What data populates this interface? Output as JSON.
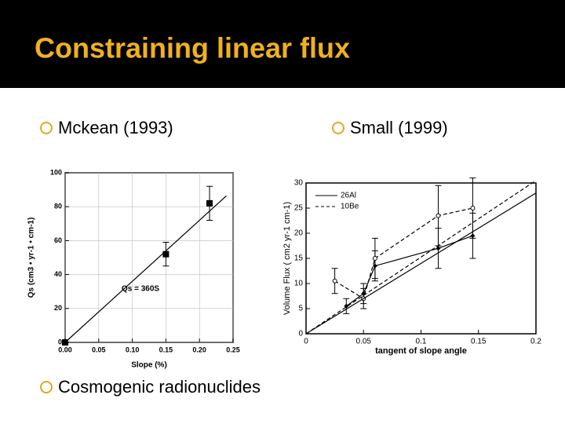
{
  "title": "Constraining linear flux",
  "bullets": [
    "Mckean (1993)",
    "Small (1999)",
    "Cosmogenic radionuclides"
  ],
  "chart_data": [
    {
      "type": "scatter",
      "xlabel": "Slope (%)",
      "ylabel": "Qs (cm3 • yr-1 • cm-1)",
      "annotation": "Qs = 360S",
      "xlim": [
        0,
        0.25
      ],
      "xticks": [
        {
          "value": 0,
          "label": "0.00"
        },
        {
          "value": 0.05,
          "label": "0.05"
        },
        {
          "value": 0.1,
          "label": "0.10"
        },
        {
          "value": 0.15,
          "label": "0.15"
        },
        {
          "value": 0.2,
          "label": "0.20"
        },
        {
          "value": 0.25,
          "label": "0.25"
        }
      ],
      "ylim": [
        0,
        100
      ],
      "yticks": [
        0,
        20,
        40,
        60,
        80,
        100
      ],
      "grid": true,
      "series": [
        {
          "color": "#000000",
          "marker": "square",
          "x": [
            0,
            0.15,
            0.215
          ],
          "values": [
            0,
            52,
            82
          ],
          "errors": [
            0,
            7,
            10
          ]
        },
        {
          "color": "#000000",
          "marker": "none",
          "line": "solid",
          "x": [
            0,
            0.24
          ],
          "values": [
            0,
            86.4
          ]
        }
      ]
    },
    {
      "type": "scatter",
      "xlabel": "tangent of slope angle",
      "ylabel": "Volume Flux ( cm2 yr-1 cm-1)",
      "xlim": [
        0,
        0.2
      ],
      "xticks": [
        0,
        0.05,
        0.1,
        0.15,
        0.2
      ],
      "ylim": [
        0,
        30
      ],
      "yticks": [
        0,
        5,
        10,
        15,
        20,
        25,
        30
      ],
      "grid": false,
      "series": [
        {
          "name": "26Al",
          "color": "#000000",
          "marker": "diamond",
          "line": "solid",
          "x": [
            0.035,
            0.05,
            0.06,
            0.115,
            0.145
          ],
          "values": [
            5.5,
            8,
            13.5,
            17,
            19.5
          ],
          "errors": [
            1.5,
            2,
            3,
            4,
            4.5
          ]
        },
        {
          "name": "10Be",
          "color": "#000000",
          "marker": "open",
          "line": "dash",
          "x": [
            0.025,
            0.05,
            0.06,
            0.115,
            0.145
          ],
          "values": [
            10.5,
            7,
            15,
            23.5,
            25
          ],
          "errors": [
            2.5,
            2,
            4,
            6,
            6
          ]
        },
        {
          "color": "#000000",
          "marker": "none",
          "line": "solid",
          "x": [
            0,
            0.2
          ],
          "values": [
            0,
            28
          ]
        },
        {
          "color": "#000000",
          "marker": "none",
          "line": "dash",
          "x": [
            0,
            0.2
          ],
          "values": [
            0,
            30.5
          ]
        }
      ]
    }
  ]
}
